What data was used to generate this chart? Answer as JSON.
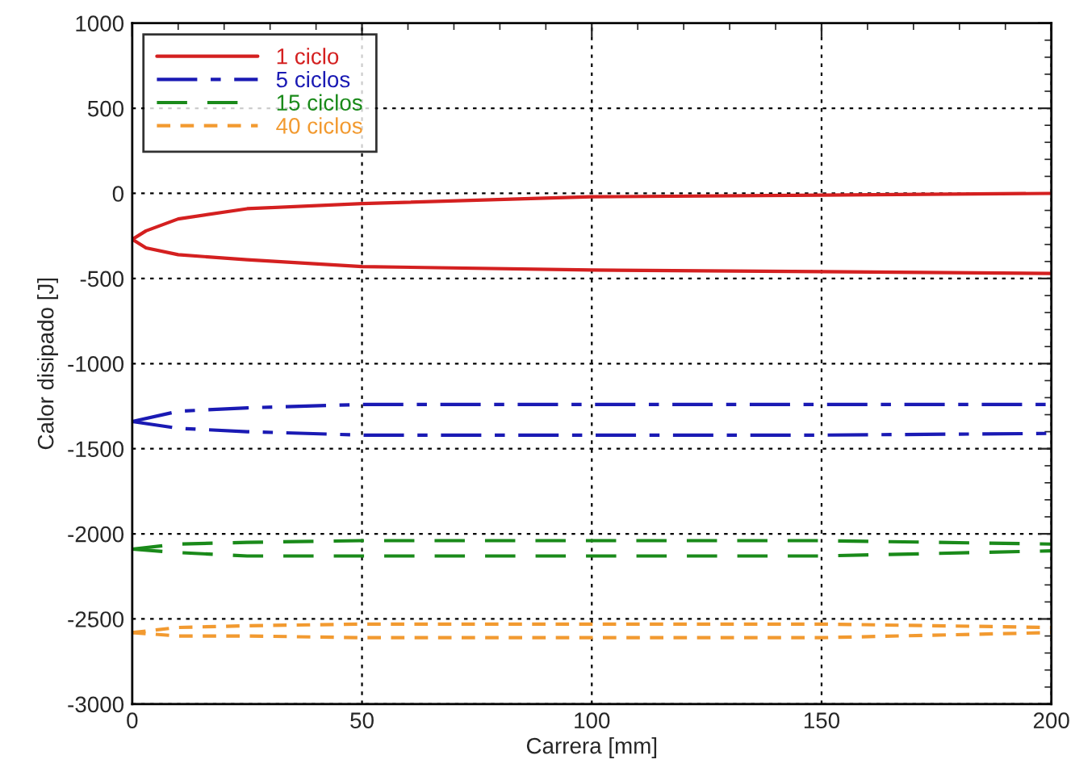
{
  "chart_data": {
    "type": "line",
    "xlabel": "Carrera [mm]",
    "ylabel": "Calor disipado [J]",
    "xlim": [
      0,
      200
    ],
    "ylim": [
      -3000,
      1000
    ],
    "xticks": [
      0,
      50,
      100,
      150,
      200
    ],
    "yticks": [
      -3000,
      -2500,
      -2000,
      -1500,
      -1000,
      -500,
      0,
      500,
      1000
    ],
    "grid": true,
    "legend": "top left",
    "marker": "none",
    "series": [
      {
        "name": "1 ciclo",
        "color": "#d42020",
        "line_style": "solid",
        "x": [
          0,
          3,
          10,
          25,
          50,
          100,
          150,
          200
        ],
        "values": [
          -270,
          -220,
          -150,
          -90,
          -60,
          -20,
          -10,
          0
        ]
      },
      {
        "color": "#d42020",
        "line_style": "solid",
        "x": [
          0,
          3,
          10,
          25,
          50,
          100,
          150,
          200
        ],
        "values": [
          -270,
          -320,
          -360,
          -390,
          -430,
          -450,
          -460,
          -470
        ]
      },
      {
        "name": "5 ciclos",
        "color": "#1a1ab4",
        "line_style": "dashdot",
        "x": [
          0,
          10,
          25,
          50,
          100,
          150,
          200
        ],
        "values": [
          -1340,
          -1280,
          -1260,
          -1240,
          -1240,
          -1240,
          -1240
        ]
      },
      {
        "color": "#1a1ab4",
        "line_style": "dashdot",
        "x": [
          0,
          10,
          25,
          50,
          100,
          150,
          200
        ],
        "values": [
          -1340,
          -1380,
          -1400,
          -1420,
          -1420,
          -1420,
          -1410
        ]
      },
      {
        "name": "15 ciclos",
        "color": "#1a8a1a",
        "line_style": "dashed",
        "x": [
          0,
          10,
          25,
          50,
          100,
          150,
          200
        ],
        "values": [
          -2090,
          -2060,
          -2050,
          -2040,
          -2040,
          -2040,
          -2060
        ]
      },
      {
        "color": "#1a8a1a",
        "line_style": "dashed",
        "x": [
          0,
          10,
          25,
          50,
          100,
          150,
          200
        ],
        "values": [
          -2090,
          -2110,
          -2130,
          -2130,
          -2130,
          -2130,
          -2100
        ]
      },
      {
        "name": "40 ciclos",
        "color": "#f29a30",
        "line_style": "dotted",
        "x": [
          0,
          10,
          25,
          50,
          100,
          150,
          200
        ],
        "values": [
          -2580,
          -2550,
          -2540,
          -2530,
          -2530,
          -2530,
          -2550
        ]
      },
      {
        "color": "#f29a30",
        "line_style": "dotted",
        "x": [
          0,
          10,
          25,
          50,
          100,
          150,
          200
        ],
        "values": [
          -2580,
          -2600,
          -2600,
          -2610,
          -2610,
          -2610,
          -2580
        ]
      }
    ]
  }
}
